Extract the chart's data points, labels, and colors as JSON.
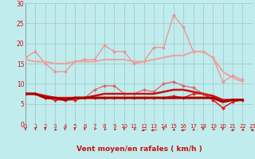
{
  "background_color": "#c0eced",
  "grid_color": "#a0c4c4",
  "xlabel": "Vent moyen/en rafales ( km/h )",
  "xlim": [
    0,
    23
  ],
  "ylim": [
    0,
    30
  ],
  "yticks": [
    0,
    5,
    10,
    15,
    20,
    25,
    30
  ],
  "xticks": [
    0,
    1,
    2,
    3,
    4,
    5,
    6,
    7,
    8,
    9,
    10,
    11,
    12,
    13,
    14,
    15,
    16,
    17,
    18,
    19,
    20,
    21,
    22,
    23
  ],
  "series": [
    {
      "name": "rafales_spiky",
      "color": "#f09090",
      "linewidth": 0.9,
      "marker": "D",
      "markersize": 2.0,
      "values": [
        16.5,
        18,
        15,
        13,
        13,
        15.5,
        16,
        16,
        19.5,
        18,
        18,
        15,
        15.5,
        19,
        19,
        27,
        24,
        18,
        18,
        16.5,
        10.5,
        12,
        11
      ]
    },
    {
      "name": "rafales_smooth",
      "color": "#f0a0a0",
      "linewidth": 1.4,
      "marker": null,
      "markersize": 0,
      "values": [
        16,
        15.5,
        15.5,
        15,
        15,
        15.5,
        15.5,
        15.5,
        16,
        16,
        16,
        15.5,
        15.5,
        16,
        16.5,
        17,
        17,
        18,
        18,
        16.5,
        13,
        11.5,
        10.5
      ]
    },
    {
      "name": "vent_spiky",
      "color": "#e06060",
      "linewidth": 0.9,
      "marker": "D",
      "markersize": 2.0,
      "values": [
        7.5,
        7.5,
        6.5,
        6,
        6,
        6,
        6.5,
        8.5,
        9.5,
        9.5,
        7.5,
        7.5,
        8.5,
        8,
        10,
        10.5,
        9.5,
        9,
        7.5,
        6,
        4,
        5.5,
        6
      ]
    },
    {
      "name": "vent_smooth_bold",
      "color": "#cc1010",
      "linewidth": 1.8,
      "marker": null,
      "markersize": 0,
      "values": [
        7.5,
        7.5,
        7,
        6.5,
        6.5,
        6.5,
        6.5,
        7,
        7.5,
        7.5,
        7.5,
        7.5,
        7.5,
        7.5,
        8,
        8.5,
        8.5,
        8,
        7.5,
        7,
        6,
        6,
        6
      ]
    },
    {
      "name": "vent_low_marker",
      "color": "#dd2020",
      "linewidth": 1.0,
      "marker": "D",
      "markersize": 2.0,
      "values": [
        7.5,
        7.5,
        6.5,
        6,
        6,
        6,
        6.5,
        6.5,
        6.5,
        6.5,
        6.5,
        6.5,
        6.5,
        6.5,
        6.5,
        7,
        6.5,
        7.5,
        7.5,
        6,
        4,
        5.5,
        6
      ]
    },
    {
      "name": "vent_flat_bold",
      "color": "#aa0000",
      "linewidth": 2.2,
      "marker": null,
      "markersize": 0,
      "values": [
        7.5,
        7.5,
        6.5,
        6.5,
        6,
        6.5,
        6.5,
        6.5,
        6.5,
        6.5,
        6.5,
        6.5,
        6.5,
        6.5,
        6.5,
        6.5,
        6.5,
        6.5,
        6.5,
        6.5,
        5.5,
        6,
        6
      ]
    }
  ],
  "arrow_color": "#cc1010",
  "arrow_angles_deg": [
    270,
    270,
    270,
    240,
    270,
    270,
    270,
    260,
    250,
    250,
    270,
    255,
    210,
    200,
    270,
    240,
    210,
    240,
    270,
    250,
    270,
    225,
    235,
    315
  ]
}
